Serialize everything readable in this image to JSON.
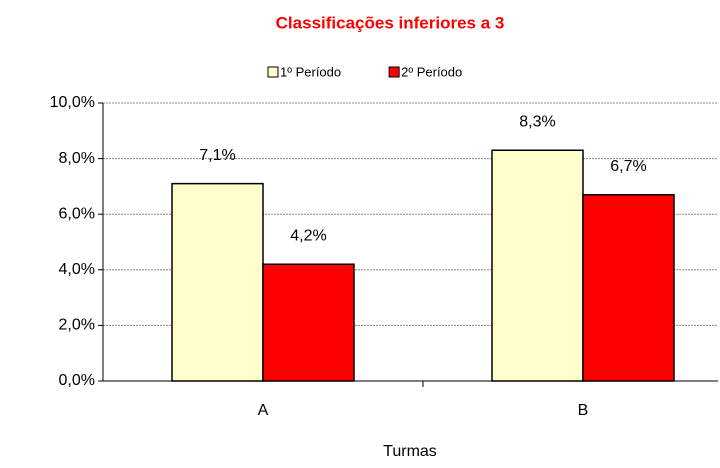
{
  "chart_data": {
    "type": "bar",
    "title": "Classificações inferiores a 3",
    "x_label": "Turmas",
    "categories": [
      "A",
      "B"
    ],
    "series": [
      {
        "name": "1º Período",
        "color": "#ffffcc",
        "values": [
          7.1,
          8.3
        ],
        "value_labels": [
          "7,1%",
          "8,3%"
        ]
      },
      {
        "name": "2º Período",
        "color": "#ff0000",
        "values": [
          4.2,
          6.7
        ],
        "value_labels": [
          "4,2%",
          "6,7%"
        ]
      }
    ],
    "ylim": [
      0,
      10
    ],
    "yticks": [
      {
        "value": 0,
        "label": "0,0%"
      },
      {
        "value": 2,
        "label": "2,0%"
      },
      {
        "value": 4,
        "label": "4,0%"
      },
      {
        "value": 6,
        "label": "6,0%"
      },
      {
        "value": 8,
        "label": "8,0%"
      },
      {
        "value": 10,
        "label": "10,0%"
      }
    ],
    "grid": true,
    "legend": "top"
  }
}
